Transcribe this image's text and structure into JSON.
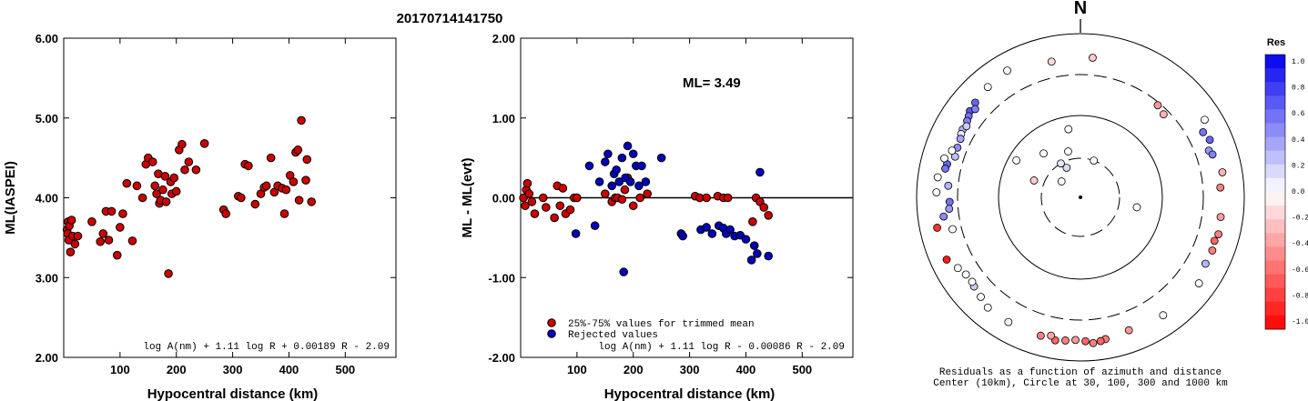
{
  "figure": {
    "title": "20170714141750",
    "colors": {
      "red": "#cc0000",
      "blue": "#0000bb",
      "edge": "#000000"
    }
  },
  "chart_data": [
    {
      "type": "scatter",
      "title": "",
      "xlabel": "Hypocentral distance (km)",
      "ylabel": "ML(IASPEI)",
      "xlim": [
        0,
        590
      ],
      "ylim": [
        2.0,
        6.0
      ],
      "xticks": [
        100,
        200,
        300,
        400,
        500
      ],
      "xtick_labels": [
        "100",
        "200",
        "300",
        "400",
        "500"
      ],
      "yticks": [
        2.0,
        3.0,
        4.0,
        5.0,
        6.0
      ],
      "ytick_labels": [
        "2.00",
        "3.00",
        "4.00",
        "5.00",
        "6.00"
      ],
      "formula": "log A(nm) + 1.11 log R + 0.00189 R - 2.09",
      "series": [
        {
          "color": "#cc0000",
          "x": [
            6,
            7,
            8,
            9,
            10,
            12,
            14,
            16,
            20,
            25,
            50,
            65,
            70,
            75,
            80,
            85,
            95,
            100,
            105,
            112,
            122,
            130,
            140,
            146,
            150,
            158,
            162,
            165,
            168,
            170,
            172,
            176,
            180,
            182,
            186,
            190,
            192,
            196,
            200,
            205,
            210,
            215,
            222,
            235,
            250,
            284,
            288,
            310,
            315,
            322,
            328,
            340,
            350,
            356,
            360,
            368,
            374,
            380,
            388,
            392,
            395,
            402,
            408,
            412,
            416,
            418,
            422,
            430,
            432,
            440
          ],
          "y": [
            3.6,
            3.55,
            3.7,
            3.47,
            3.65,
            3.32,
            3.72,
            3.52,
            3.42,
            3.52,
            3.7,
            3.45,
            3.55,
            3.83,
            3.47,
            3.83,
            3.28,
            3.63,
            3.8,
            4.18,
            3.46,
            4.15,
            4.0,
            4.42,
            4.5,
            4.45,
            4.15,
            4.05,
            4.3,
            3.93,
            3.97,
            4.1,
            4.27,
            3.95,
            3.05,
            4.2,
            4.05,
            4.25,
            4.08,
            4.6,
            4.67,
            4.35,
            4.45,
            4.35,
            4.68,
            3.85,
            3.8,
            4.02,
            4.0,
            4.42,
            4.4,
            3.92,
            4.05,
            4.13,
            4.15,
            4.5,
            4.07,
            4.15,
            4.12,
            3.8,
            4.1,
            4.28,
            4.2,
            4.57,
            4.6,
            3.97,
            4.97,
            4.22,
            4.48,
            3.95
          ]
        }
      ]
    },
    {
      "type": "scatter",
      "title": "",
      "xlabel": "Hypocentral distance (km)",
      "ylabel": "ML - ML(evt)",
      "xlim": [
        0,
        590
      ],
      "ylim": [
        -2.0,
        2.0
      ],
      "xticks": [
        100,
        200,
        300,
        400,
        500
      ],
      "xtick_labels": [
        "100",
        "200",
        "300",
        "400",
        "500"
      ],
      "yticks": [
        -2.0,
        -1.0,
        0.0,
        1.0,
        2.0
      ],
      "ytick_labels": [
        "-2.00",
        "-1.00",
        "0.00",
        "1.00",
        "2.00"
      ],
      "reference_line": 0.0,
      "annotation": "ML= 3.49",
      "formula": "log A(nm) + 1.11 log R - 0.00086 R - 2.09",
      "legend": [
        {
          "label": "25%-75% values for trimmed mean",
          "color": "#cc0000"
        },
        {
          "label": "Rejected values",
          "color": "#0000bb"
        }
      ],
      "series": [
        {
          "color": "#cc0000",
          "x": [
            5,
            8,
            10,
            12,
            15,
            20,
            25,
            40,
            45,
            60,
            65,
            70,
            75,
            80,
            88,
            95,
            100,
            150,
            162,
            168,
            172,
            180,
            185,
            190,
            200,
            212,
            225,
            310,
            318,
            330,
            350,
            360,
            368,
            412,
            418,
            425,
            432,
            440
          ],
          "y": [
            0.0,
            -0.1,
            0.1,
            0.18,
            0.05,
            -0.05,
            -0.2,
            0.0,
            -0.12,
            -0.25,
            0.15,
            -0.1,
            0.12,
            -0.2,
            -0.15,
            0.0,
            0.0,
            0.05,
            -0.05,
            0.0,
            0.0,
            -0.02,
            0.1,
            0.25,
            -0.1,
            0.0,
            0.05,
            0.02,
            0.0,
            0.0,
            0.02,
            0.0,
            0.0,
            -0.3,
            0.0,
            -0.05,
            -0.12,
            -0.22
          ]
        },
        {
          "color": "#0000bb",
          "x": [
            98,
            122,
            132,
            140,
            150,
            155,
            162,
            166,
            170,
            175,
            180,
            183,
            186,
            190,
            195,
            200,
            205,
            210,
            215,
            222,
            250,
            285,
            288,
            320,
            330,
            340,
            352,
            360,
            365,
            372,
            380,
            390,
            400,
            410,
            415,
            420,
            425,
            440
          ],
          "y": [
            -0.45,
            0.4,
            -0.35,
            0.2,
            0.45,
            0.55,
            0.15,
            0.3,
            0.35,
            0.2,
            0.5,
            -0.93,
            0.25,
            0.65,
            0.2,
            0.55,
            0.4,
            0.15,
            0.4,
            0.2,
            0.5,
            -0.45,
            -0.48,
            -0.4,
            -0.37,
            -0.45,
            -0.35,
            -0.38,
            -0.45,
            -0.4,
            -0.48,
            -0.47,
            -0.52,
            -0.78,
            -0.6,
            -0.7,
            0.32,
            -0.73
          ]
        }
      ]
    },
    {
      "type": "polar-scatter",
      "north_label": "N",
      "caption_line1": "Residuals as a function of azimuth and distance",
      "caption_line2": "Center (10km), Circle at 30, 100, 300 and 1000 km",
      "colorbar": {
        "title": "Res",
        "tick_labels": [
          "1.0",
          "0.8",
          "0.6",
          "0.4",
          "0.2",
          "0.0",
          "-0.2",
          "-0.4",
          "-0.6",
          "-0.8",
          "-1.0"
        ],
        "high_color": "#0000ee",
        "mid_color": "#ffffff",
        "low_color": "#ff0000"
      },
      "stations": [
        {
          "az": 5,
          "dist": 500,
          "res": -0.2
        },
        {
          "az": 348,
          "dist": 480,
          "res": -0.15
        },
        {
          "az": 330,
          "dist": 600,
          "res": 0.0
        },
        {
          "az": 320,
          "dist": 560,
          "res": 0.0
        },
        {
          "az": 312,
          "dist": 520,
          "res": 0.6
        },
        {
          "az": 308,
          "dist": 500,
          "res": 0.65
        },
        {
          "az": 306,
          "dist": 470,
          "res": 0.55
        },
        {
          "az": 310,
          "dist": 460,
          "res": 0.5
        },
        {
          "az": 304,
          "dist": 450,
          "res": 0.5
        },
        {
          "az": 300,
          "dist": 440,
          "res": 0.3
        },
        {
          "az": 302,
          "dist": 420,
          "res": 0.2
        },
        {
          "az": 298,
          "dist": 430,
          "res": 0.1
        },
        {
          "az": 296,
          "dist": 410,
          "res": 0.35
        },
        {
          "az": 292,
          "dist": 400,
          "res": 0.45
        },
        {
          "az": 288,
          "dist": 390,
          "res": 0.25
        },
        {
          "az": 290,
          "dist": 450,
          "res": 0.0
        },
        {
          "az": 284,
          "dist": 460,
          "res": 0.6
        },
        {
          "az": 282,
          "dist": 470,
          "res": 0.55
        },
        {
          "az": 286,
          "dist": 520,
          "res": 0.0
        },
        {
          "az": 278,
          "dist": 560,
          "res": 0.0
        },
        {
          "az": 272,
          "dist": 560,
          "res": 0.0
        },
        {
          "az": 268,
          "dist": 380,
          "res": 0.55
        },
        {
          "az": 265,
          "dist": 390,
          "res": 0.4
        },
        {
          "az": 275,
          "dist": 400,
          "res": 0.3
        },
        {
          "az": 262,
          "dist": 470,
          "res": 0.45
        },
        {
          "az": 256,
          "dist": 390,
          "res": 0.0
        },
        {
          "az": 40,
          "dist": 280,
          "res": -0.4
        },
        {
          "az": 45,
          "dist": 260,
          "res": -0.3
        },
        {
          "az": 58,
          "dist": 600,
          "res": 0.0
        },
        {
          "az": 62,
          "dist": 480,
          "res": 0.55
        },
        {
          "az": 66,
          "dist": 520,
          "res": 0.6
        },
        {
          "az": 70,
          "dist": 450,
          "res": 0.4
        },
        {
          "az": 72,
          "dist": 480,
          "res": 0.5
        },
        {
          "az": 80,
          "dist": 560,
          "res": -0.3
        },
        {
          "az": 86,
          "dist": 500,
          "res": -0.5
        },
        {
          "az": 98,
          "dist": 520,
          "res": -0.4
        },
        {
          "az": 105,
          "dist": 540,
          "res": -0.5
        },
        {
          "az": 108,
          "dist": 510,
          "res": -0.6
        },
        {
          "az": 112,
          "dist": 530,
          "res": -0.5
        },
        {
          "az": 118,
          "dist": 520,
          "res": 0.3
        },
        {
          "az": 126,
          "dist": 600,
          "res": 0.0
        },
        {
          "az": 145,
          "dist": 560,
          "res": 0.0
        },
        {
          "az": 160,
          "dist": 520,
          "res": -0.4
        },
        {
          "az": 170,
          "dist": 560,
          "res": -0.5
        },
        {
          "az": 172,
          "dist": 580,
          "res": -0.6
        },
        {
          "az": 175,
          "dist": 600,
          "res": -0.5
        },
        {
          "az": 178,
          "dist": 560,
          "res": -0.6
        },
        {
          "az": 182,
          "dist": 540,
          "res": -0.4
        },
        {
          "az": 186,
          "dist": 560,
          "res": -0.5
        },
        {
          "az": 190,
          "dist": 580,
          "res": -0.6
        },
        {
          "az": 192,
          "dist": 520,
          "res": -0.35
        },
        {
          "az": 196,
          "dist": 560,
          "res": -0.5
        },
        {
          "az": 210,
          "dist": 560,
          "res": 0.0
        },
        {
          "az": 220,
          "dist": 560,
          "res": 0.0
        },
        {
          "az": 225,
          "dist": 510,
          "res": 0.0
        },
        {
          "az": 230,
          "dist": 480,
          "res": 0.2
        },
        {
          "az": 232,
          "dist": 460,
          "res": 0.0
        },
        {
          "az": 236,
          "dist": 470,
          "res": 0.0
        },
        {
          "az": 240,
          "dist": 520,
          "res": 0.0
        },
        {
          "az": 245,
          "dist": 620,
          "res": -0.9
        },
        {
          "az": 258,
          "dist": 600,
          "res": -0.8
        },
        {
          "az": 300,
          "dist": 80,
          "res": 0.0
        },
        {
          "az": 320,
          "dist": 50,
          "res": 0.0
        },
        {
          "az": 330,
          "dist": 30,
          "res": 0.1
        },
        {
          "az": 335,
          "dist": 25,
          "res": 0.15
        },
        {
          "az": 310,
          "dist": 20,
          "res": 0.0
        },
        {
          "az": 290,
          "dist": 40,
          "res": -0.2
        },
        {
          "az": 100,
          "dist": 50,
          "res": 0.0
        },
        {
          "az": 345,
          "dist": 38,
          "res": 0.0
        },
        {
          "az": 350,
          "dist": 70,
          "res": 0.0
        },
        {
          "az": 20,
          "dist": 30,
          "res": 0.0
        }
      ]
    }
  ]
}
